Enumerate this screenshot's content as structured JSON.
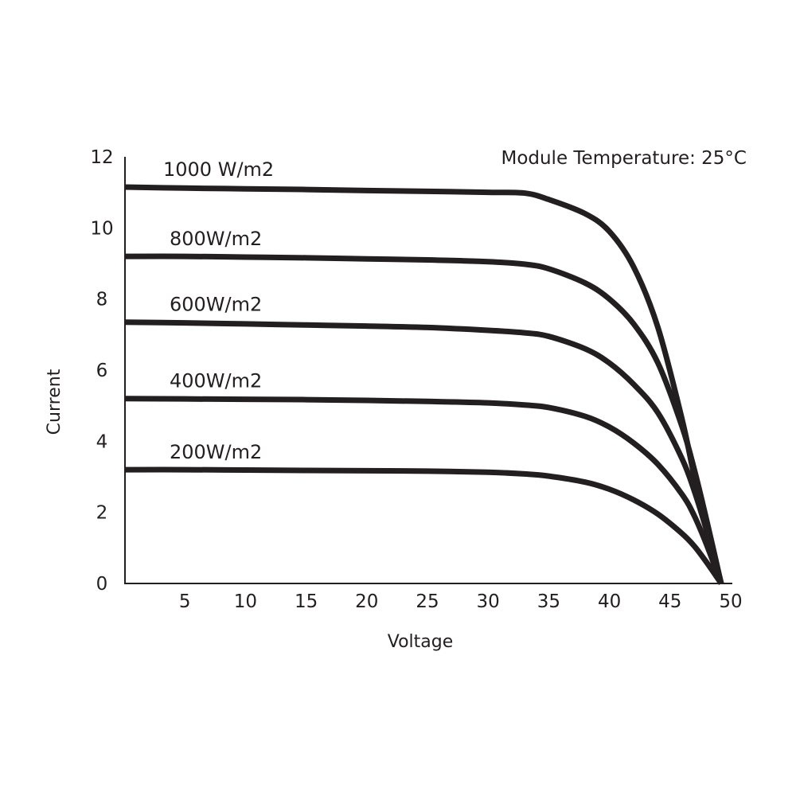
{
  "chart_data": {
    "type": "line",
    "title": "",
    "annotation": "Module Temperature: 25°C",
    "xlabel": "Voltage",
    "ylabel": "Current",
    "xlim": [
      0,
      50
    ],
    "ylim": [
      0,
      12
    ],
    "xticks": [
      5,
      10,
      15,
      20,
      25,
      30,
      35,
      40,
      45,
      50
    ],
    "yticks": [
      0,
      2,
      4,
      6,
      8,
      10,
      12
    ],
    "grid": false,
    "legend": "inline labels above each curve",
    "line_color": "#231f20",
    "x": [
      0,
      5,
      10,
      15,
      20,
      25,
      30,
      33,
      35,
      38,
      40,
      42,
      44,
      46,
      47,
      48,
      49.2
    ],
    "series": [
      {
        "name": "1000 W/m2",
        "values": [
          11.15,
          11.12,
          11.1,
          11.08,
          11.05,
          11.03,
          11.0,
          10.98,
          10.8,
          10.4,
          9.9,
          8.9,
          7.2,
          4.6,
          3.0,
          1.6,
          0
        ]
      },
      {
        "name": "800W/m2",
        "values": [
          9.2,
          9.2,
          9.18,
          9.16,
          9.13,
          9.1,
          9.05,
          8.98,
          8.85,
          8.45,
          8.0,
          7.3,
          6.2,
          4.4,
          3.2,
          1.8,
          0
        ]
      },
      {
        "name": "600W/m2",
        "values": [
          7.35,
          7.33,
          7.3,
          7.27,
          7.24,
          7.2,
          7.12,
          7.05,
          6.95,
          6.6,
          6.2,
          5.6,
          4.8,
          3.5,
          2.6,
          1.5,
          0
        ]
      },
      {
        "name": "400W/m2",
        "values": [
          5.2,
          5.19,
          5.18,
          5.17,
          5.15,
          5.12,
          5.08,
          5.02,
          4.95,
          4.7,
          4.4,
          3.95,
          3.35,
          2.5,
          1.9,
          1.1,
          0
        ]
      },
      {
        "name": "200W/m2",
        "values": [
          3.2,
          3.2,
          3.19,
          3.18,
          3.17,
          3.16,
          3.13,
          3.08,
          3.02,
          2.85,
          2.65,
          2.35,
          1.95,
          1.4,
          1.05,
          0.6,
          0
        ]
      }
    ]
  }
}
